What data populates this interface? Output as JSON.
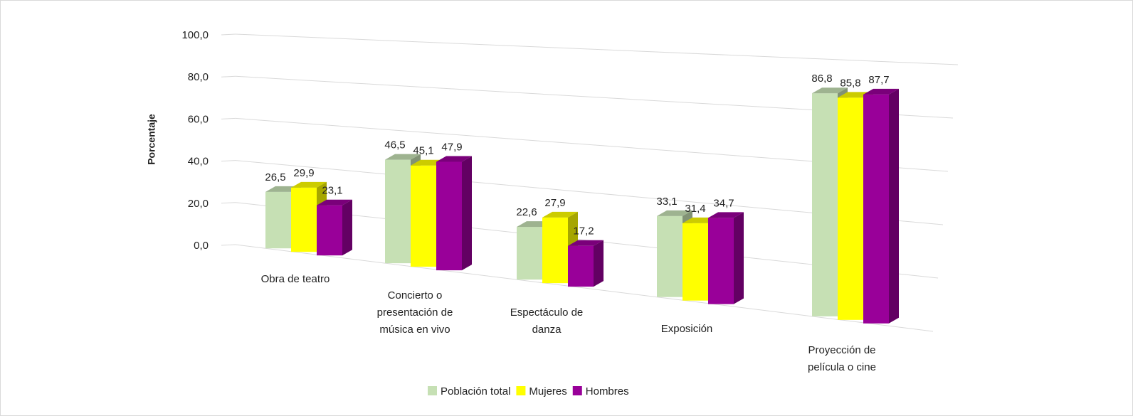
{
  "chart_data": {
    "type": "bar3d",
    "y_label": "Porcentaje",
    "categories": [
      "Obra de teatro",
      "Concierto o presentación de música en vivo",
      "Espectáculo de danza",
      "Exposición",
      "Proyección de película o cine"
    ],
    "series": [
      {
        "name": "Población total",
        "color": "#c6e0b4",
        "values": [
          26.5,
          46.5,
          22.6,
          33.1,
          86.8
        ],
        "value_labels": [
          "26,5",
          "46,5",
          "22,6",
          "33,1",
          "86,8"
        ]
      },
      {
        "name": "Mujeres",
        "color": "#ffff00",
        "values": [
          29.9,
          45.1,
          27.9,
          31.4,
          85.8
        ],
        "value_labels": [
          "29,9",
          "45,1",
          "27,9",
          "31,4",
          "85,8"
        ]
      },
      {
        "name": "Hombres",
        "color": "#990099",
        "values": [
          23.1,
          47.9,
          17.2,
          34.7,
          87.7
        ],
        "value_labels": [
          "23,1",
          "47,9",
          "17,2",
          "34,7",
          "87,7"
        ]
      }
    ],
    "ylim": [
      0,
      100
    ],
    "yticks": [
      {
        "value": 0,
        "label": "0,0"
      },
      {
        "value": 20,
        "label": "20,0"
      },
      {
        "value": 40,
        "label": "40,0"
      },
      {
        "value": 60,
        "label": "60,0"
      },
      {
        "value": 80,
        "label": "80,0"
      },
      {
        "value": 100,
        "label": "100,0"
      }
    ],
    "grid": true,
    "legend": "bottom"
  }
}
